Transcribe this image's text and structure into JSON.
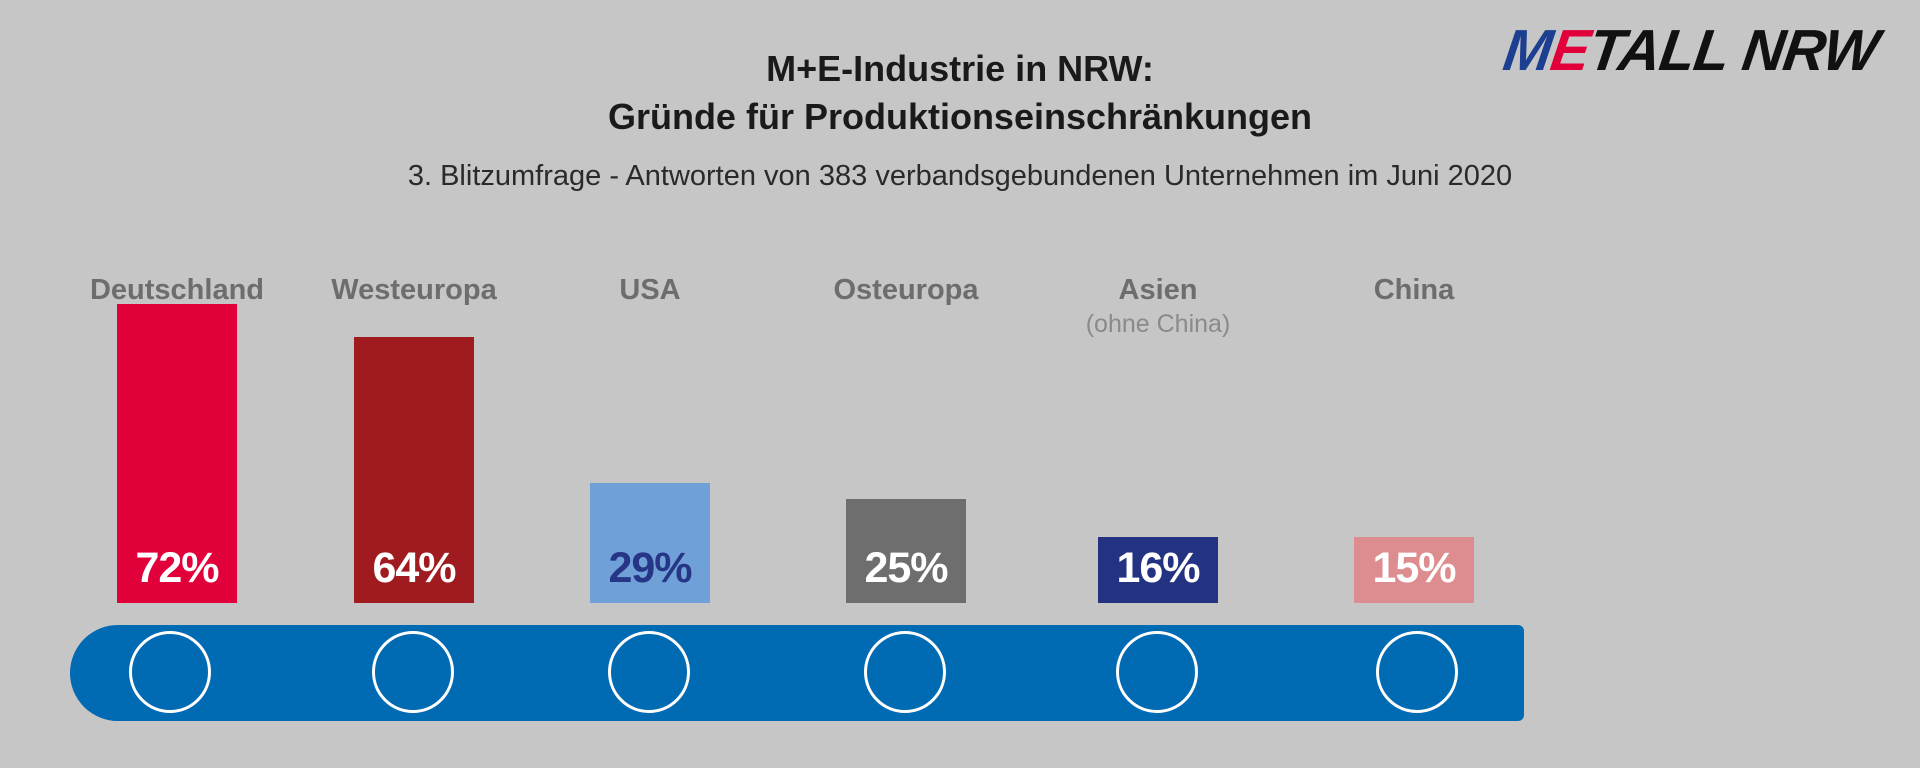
{
  "logo": {
    "m": "M",
    "e": "E",
    "rest": "TALL NRW"
  },
  "title_line1": "M+E-Industrie in NRW:",
  "title_line2": "Gründe für Produktionseinschränkungen",
  "subtitle": "3. Blitzumfrage - Antworten von 383 verbandsgebundenen Unternehmen im Juni 2020",
  "chart_data": {
    "type": "bar",
    "categories": [
      "Deutschland",
      "Westeuropa",
      "USA",
      "Osteuropa",
      "Asien",
      "China"
    ],
    "category_notes": [
      "",
      "",
      "",
      "",
      "(ohne China)",
      ""
    ],
    "values": [
      72,
      64,
      29,
      25,
      16,
      15
    ],
    "value_labels": [
      "72%",
      "64%",
      "29%",
      "25%",
      "16%",
      "15%"
    ],
    "bar_colors": [
      "#e2003b",
      "#a01b1f",
      "#6fa0d8",
      "#6e6e6e",
      "#243282",
      "#dd8d8f"
    ],
    "value_label_colors": [
      "#ffffff",
      "#ffffff",
      "#263585",
      "#ffffff",
      "#ffffff",
      "#ffffff"
    ],
    "belt_color": "#006ab3"
  }
}
